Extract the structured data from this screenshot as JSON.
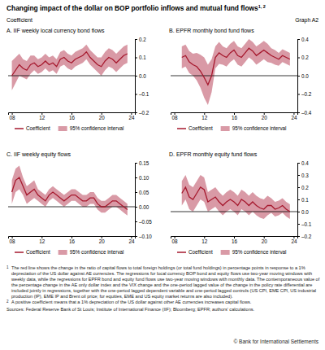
{
  "title": "Changing impact of the dollar on BOP portfolio inflows and mutual fund flows",
  "title_note": "1, 2",
  "graph_label": "Graph A2",
  "unit_label": "Coefficient",
  "chart_data": [
    {
      "type": "line",
      "title": "A. IIF weekly local currency bond flows",
      "x": [
        2008.0,
        2008.5,
        2009.0,
        2009.5,
        2010.0,
        2010.5,
        2011.0,
        2011.5,
        2012.0,
        2012.5,
        2013.0,
        2013.5,
        2014.0,
        2014.5,
        2015.0,
        2015.5,
        2016.0,
        2016.5,
        2017.0,
        2017.5,
        2018.0,
        2018.5,
        2019.0,
        2019.5,
        2020.0,
        2020.5,
        2021.0,
        2021.5,
        2022.0,
        2022.5,
        2023.0,
        2023.5
      ],
      "xlim": [
        2007.5,
        2024.5
      ],
      "xticks": [
        {
          "value": 2008,
          "label": "08"
        },
        {
          "value": 2012,
          "label": "12"
        },
        {
          "value": 2016,
          "label": "16"
        },
        {
          "value": 2020,
          "label": "20"
        },
        {
          "value": 2024,
          "label": "24"
        }
      ],
      "ylim": [
        -0.2,
        0.2
      ],
      "yticks": [
        {
          "value": -0.2,
          "label": "–0.2"
        },
        {
          "value": -0.1,
          "label": "–0.1"
        },
        {
          "value": 0,
          "label": "0.0"
        },
        0.1,
        0.2
      ],
      "series": [
        {
          "name": "Coefficient",
          "type": "line",
          "color": "#a6192e",
          "values": [
            0.0,
            0.03,
            0.06,
            0.04,
            0.03,
            0.06,
            0.07,
            0.05,
            0.06,
            0.08,
            0.06,
            0.07,
            0.05,
            0.09,
            0.1,
            0.08,
            0.07,
            0.09,
            0.1,
            0.11,
            0.13,
            0.1,
            0.08,
            0.06,
            0.05,
            0.08,
            0.1,
            0.09,
            0.07,
            0.09,
            0.11,
            0.12
          ]
        },
        {
          "name": "95% confidence interval",
          "type": "area",
          "color": "#d99aa6",
          "lower": [
            -0.08,
            -0.04,
            0.0,
            -0.01,
            -0.02,
            0.01,
            0.03,
            0.01,
            0.02,
            0.04,
            0.02,
            0.03,
            0.01,
            0.05,
            0.06,
            0.04,
            0.03,
            0.05,
            0.06,
            0.07,
            0.09,
            0.06,
            0.04,
            0.02,
            0.0,
            0.03,
            0.05,
            0.04,
            0.02,
            0.04,
            0.06,
            0.07
          ],
          "upper": [
            0.08,
            0.1,
            0.12,
            0.09,
            0.08,
            0.11,
            0.11,
            0.09,
            0.1,
            0.12,
            0.1,
            0.11,
            0.09,
            0.13,
            0.14,
            0.12,
            0.11,
            0.13,
            0.14,
            0.15,
            0.17,
            0.14,
            0.12,
            0.1,
            0.1,
            0.13,
            0.15,
            0.14,
            0.12,
            0.14,
            0.16,
            0.17
          ]
        }
      ]
    },
    {
      "type": "line",
      "title": "B. EPFR monthly bond fund flows",
      "x": [
        2009.0,
        2009.5,
        2010.0,
        2010.5,
        2011.0,
        2011.5,
        2012.0,
        2012.5,
        2013.0,
        2013.5,
        2014.0,
        2014.5,
        2015.0,
        2015.5,
        2016.0,
        2016.5,
        2017.0,
        2017.5,
        2018.0,
        2018.5,
        2019.0,
        2019.5,
        2020.0,
        2020.5,
        2021.0,
        2021.5,
        2022.0,
        2022.5,
        2023.0,
        2023.5
      ],
      "xlim": [
        2007.5,
        2024.5
      ],
      "xticks": [
        {
          "value": 2008,
          "label": "08"
        },
        {
          "value": 2012,
          "label": "12"
        },
        {
          "value": 2016,
          "label": "16"
        },
        {
          "value": 2020,
          "label": "20"
        },
        {
          "value": 2024,
          "label": "24"
        }
      ],
      "ylim": [
        -0.4,
        0.4
      ],
      "yticks": [
        {
          "value": -0.4,
          "label": "–0.4"
        },
        {
          "value": -0.2,
          "label": "–0.2"
        },
        {
          "value": 0,
          "label": "0.0"
        },
        0.2,
        0.4
      ],
      "series": [
        {
          "name": "Coefficient",
          "type": "line",
          "color": "#a6192e",
          "values": [
            0.2,
            0.22,
            0.15,
            0.12,
            0.1,
            0.05,
            -0.02,
            -0.1,
            0.0,
            0.2,
            0.25,
            0.22,
            0.2,
            0.25,
            0.28,
            0.22,
            0.2,
            0.25,
            0.3,
            0.27,
            0.22,
            0.25,
            0.28,
            0.25,
            0.22,
            0.2,
            0.18,
            0.22,
            0.2,
            0.18
          ]
        },
        {
          "name": "95% confidence interval",
          "type": "area",
          "color": "#d99aa6",
          "lower": [
            0.08,
            0.1,
            0.03,
            0.0,
            -0.05,
            -0.13,
            -0.24,
            -0.32,
            -0.18,
            0.08,
            0.13,
            0.12,
            0.1,
            0.15,
            0.18,
            0.12,
            0.1,
            0.15,
            0.2,
            0.17,
            0.12,
            0.15,
            0.18,
            0.15,
            0.14,
            0.12,
            0.11,
            0.15,
            0.13,
            0.11
          ],
          "upper": [
            0.32,
            0.34,
            0.27,
            0.24,
            0.25,
            0.23,
            0.2,
            0.12,
            0.18,
            0.32,
            0.37,
            0.32,
            0.3,
            0.35,
            0.38,
            0.32,
            0.3,
            0.35,
            0.4,
            0.37,
            0.32,
            0.35,
            0.38,
            0.35,
            0.3,
            0.28,
            0.25,
            0.29,
            0.27,
            0.25
          ]
        }
      ]
    },
    {
      "type": "line",
      "title": "C. IIF weekly equity flows",
      "x": [
        2008.0,
        2008.5,
        2009.0,
        2009.5,
        2010.0,
        2010.5,
        2011.0,
        2011.5,
        2012.0,
        2012.5,
        2013.0,
        2013.5,
        2014.0,
        2014.5,
        2015.0,
        2015.5,
        2016.0,
        2016.5,
        2017.0,
        2017.5,
        2018.0,
        2018.5,
        2019.0,
        2019.5,
        2020.0,
        2020.5,
        2021.0,
        2021.5,
        2022.0,
        2022.5,
        2023.0,
        2023.5
      ],
      "xlim": [
        2007.5,
        2024.5
      ],
      "xticks": [
        {
          "value": 2008,
          "label": "08"
        },
        {
          "value": 2012,
          "label": "12"
        },
        {
          "value": 2016,
          "label": "16"
        },
        {
          "value": 2020,
          "label": "20"
        },
        {
          "value": 2024,
          "label": "24"
        }
      ],
      "ylim": [
        -0.1,
        0.15
      ],
      "yticks": [
        {
          "value": -0.1,
          "label": "–0.10"
        },
        {
          "value": -0.05,
          "label": "–0.05"
        },
        {
          "value": 0,
          "label": "0.00"
        },
        0.05,
        {
          "value": 0.1,
          "label": "0.10"
        },
        0.15
      ],
      "series": [
        {
          "name": "Coefficient",
          "type": "line",
          "color": "#a6192e",
          "values": [
            0.05,
            0.09,
            0.1,
            0.07,
            0.04,
            0.05,
            0.06,
            0.04,
            0.03,
            0.02,
            0.04,
            0.05,
            0.04,
            0.03,
            0.02,
            0.03,
            0.04,
            0.04,
            0.03,
            0.02,
            0.02,
            0.03,
            0.03,
            0.01,
            0.0,
            0.0,
            0.01,
            0.02,
            0.02,
            0.01,
            0.0,
            -0.01
          ]
        },
        {
          "name": "95% confidence interval",
          "type": "area",
          "color": "#d99aa6",
          "lower": [
            0.01,
            0.05,
            0.06,
            0.04,
            0.01,
            0.02,
            0.03,
            0.02,
            0.01,
            0.0,
            0.02,
            0.03,
            0.02,
            0.01,
            0.0,
            0.01,
            0.02,
            0.02,
            0.01,
            0.0,
            0.0,
            0.01,
            0.01,
            -0.01,
            -0.02,
            -0.02,
            -0.01,
            0.0,
            0.0,
            -0.01,
            -0.02,
            -0.03
          ],
          "upper": [
            0.09,
            0.13,
            0.14,
            0.1,
            0.07,
            0.08,
            0.09,
            0.06,
            0.05,
            0.04,
            0.06,
            0.07,
            0.06,
            0.05,
            0.04,
            0.05,
            0.06,
            0.06,
            0.05,
            0.04,
            0.04,
            0.05,
            0.05,
            0.03,
            0.02,
            0.02,
            0.03,
            0.04,
            0.04,
            0.03,
            0.02,
            0.01
          ]
        }
      ]
    },
    {
      "type": "line",
      "title": "D. EPFR monthly equity fund flows",
      "x": [
        2009.0,
        2009.5,
        2010.0,
        2010.5,
        2011.0,
        2011.5,
        2012.0,
        2012.5,
        2013.0,
        2013.5,
        2014.0,
        2014.5,
        2015.0,
        2015.5,
        2016.0,
        2016.5,
        2017.0,
        2017.5,
        2018.0,
        2018.5,
        2019.0,
        2019.5,
        2020.0,
        2020.5,
        2021.0,
        2021.5,
        2022.0,
        2022.5,
        2023.0,
        2023.5
      ],
      "xlim": [
        2007.5,
        2024.5
      ],
      "xticks": [
        {
          "value": 2008,
          "label": "08"
        },
        {
          "value": 2012,
          "label": "12"
        },
        {
          "value": 2016,
          "label": "16"
        },
        {
          "value": 2020,
          "label": "20"
        },
        {
          "value": 2024,
          "label": "24"
        }
      ],
      "ylim": [
        -0.2,
        0.4
      ],
      "yticks": [
        {
          "value": -0.2,
          "label": "–0.2"
        },
        {
          "value": -0.1,
          "label": "–0.1"
        },
        {
          "value": 0,
          "label": "0.0"
        },
        0.1,
        0.2,
        0.3,
        0.4
      ],
      "series": [
        {
          "name": "Coefficient",
          "type": "line",
          "color": "#a6192e",
          "values": [
            0.15,
            0.2,
            0.12,
            0.1,
            0.15,
            0.2,
            0.18,
            0.08,
            0.1,
            0.12,
            0.08,
            0.05,
            0.08,
            0.1,
            0.08,
            0.05,
            0.1,
            0.08,
            0.05,
            0.08,
            0.05,
            0.03,
            0.02,
            0.05,
            0.05,
            0.02,
            0.03,
            0.05,
            0.02,
            0.0
          ]
        },
        {
          "name": "95% confidence interval",
          "type": "area",
          "color": "#d99aa6",
          "lower": [
            0.05,
            0.1,
            0.02,
            0.0,
            0.05,
            0.1,
            0.08,
            0.0,
            0.02,
            0.04,
            0.0,
            -0.03,
            0.0,
            0.02,
            0.0,
            -0.03,
            0.02,
            0.0,
            -0.03,
            0.0,
            -0.03,
            -0.05,
            -0.06,
            -0.03,
            -0.01,
            -0.04,
            -0.03,
            -0.01,
            -0.04,
            -0.06
          ],
          "upper": [
            0.25,
            0.3,
            0.22,
            0.2,
            0.25,
            0.3,
            0.28,
            0.16,
            0.18,
            0.2,
            0.16,
            0.13,
            0.16,
            0.18,
            0.16,
            0.13,
            0.18,
            0.16,
            0.13,
            0.16,
            0.13,
            0.11,
            0.1,
            0.13,
            0.11,
            0.08,
            0.09,
            0.11,
            0.08,
            0.06
          ]
        }
      ]
    }
  ],
  "footnotes": [
    {
      "marker": "1",
      "text": "The red line shows the change in the ratio of capital flows to total foreign holdings (or total fund holdings) in percentage points in response to a 1% depreciation of the US dollar against AE currencies. The regressions for local currency BOP bond and equity flows use two-year moving windows with weekly data, while the regressions for EPFR bond and equity fund flows use two-year moving windows with monthly data. The contemporaneous value of the percentage change in the AE only dollar index and the VIX change and the one-period lagged value of the change in the policy rate differential are included jointly in regressions, together with the one-period lagged dependent variable and one-period lagged controls (US CPI, EME CPI, US industrial production (IP), EME IP and Brent oil price; for equities, EME and US equity market returns are also included)."
    },
    {
      "marker": "2",
      "text": "A positive coefficient means that a 1% depreciation of the US dollar against other AE currencies increases capital flows."
    }
  ],
  "sources": "Sources: Federal Reserve Bank of St Louis; Institute of International Finance (IIF); Bloomberg; EPFR; authors' calculations.",
  "copyright": "© Bank for International Settlements"
}
